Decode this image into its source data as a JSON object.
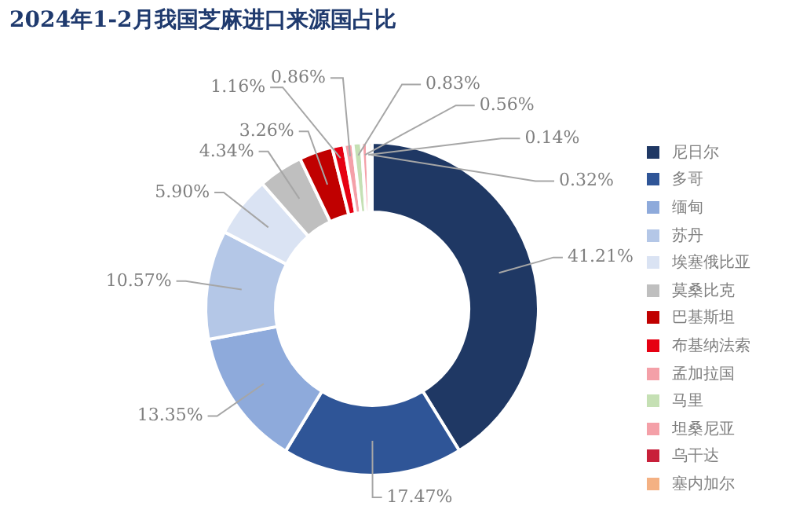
{
  "chart_data": {
    "type": "donut",
    "title": "2024年1-2月我国芝麻进口来源国占比",
    "categories": [
      "尼日尔",
      "多哥",
      "缅甸",
      "苏丹",
      "埃塞俄比亚",
      "莫桑比克",
      "巴基斯坦",
      "布基纳法索",
      "孟加拉国",
      "马里",
      "坦桑尼亚",
      "乌干达",
      "塞内加尔"
    ],
    "values": [
      41.21,
      17.47,
      13.35,
      10.57,
      5.9,
      4.34,
      3.26,
      1.16,
      0.86,
      0.83,
      0.56,
      0.14,
      0.32
    ],
    "value_labels": [
      "41.21%",
      "17.47%",
      "13.35%",
      "10.57%",
      "5.90%",
      "4.34%",
      "3.26%",
      "1.16%",
      "0.86%",
      "0.83%",
      "0.56%",
      "0.14%",
      "0.32%"
    ],
    "colors": [
      "#1f3864",
      "#2f5597",
      "#8eaadb",
      "#b4c7e7",
      "#dae3f3",
      "#bfbfbf",
      "#c00000",
      "#e60012",
      "#f4a0a8",
      "#c5e0b4",
      "#f4a0a8",
      "#c8203a",
      "#f4b183"
    ],
    "legend": "right"
  }
}
